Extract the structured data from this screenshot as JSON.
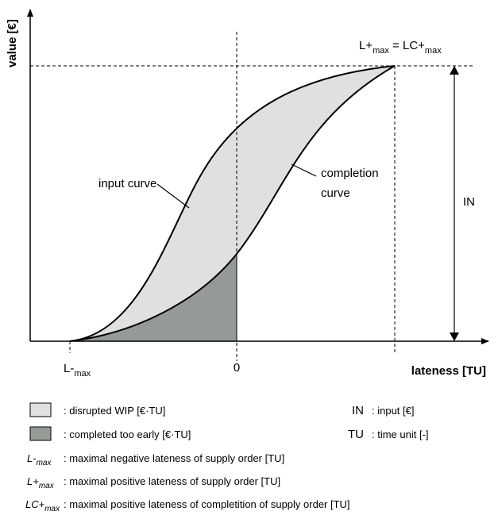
{
  "axes": {
    "y_label": "value [€]",
    "x_label": "lateness [TU]",
    "zero": "0"
  },
  "markers": {
    "l_minus": [
      "L-",
      "max"
    ],
    "top": [
      "L+",
      "max",
      " = LC+",
      "max"
    ],
    "in": "IN"
  },
  "curves": {
    "input": "input curve",
    "completion": [
      "completion",
      "curve"
    ]
  },
  "legend": {
    "disrupted": ": disrupted WIP [€·TU]",
    "early": ": completed too early [€·TU]",
    "in": [
      "IN",
      ": input [€]"
    ],
    "tu": [
      "TU",
      ": time unit [-]"
    ],
    "defs": [
      {
        "term": [
          "L-",
          "max"
        ],
        "text": ": maximal negative lateness of supply order [TU]"
      },
      {
        "term": [
          "L+",
          "max"
        ],
        "text": ": maximal positive lateness of supply order [TU]"
      },
      {
        "term": [
          "LC+",
          "max"
        ],
        "text": ": maximal positive lateness of completition of supply order [TU]"
      }
    ]
  }
}
